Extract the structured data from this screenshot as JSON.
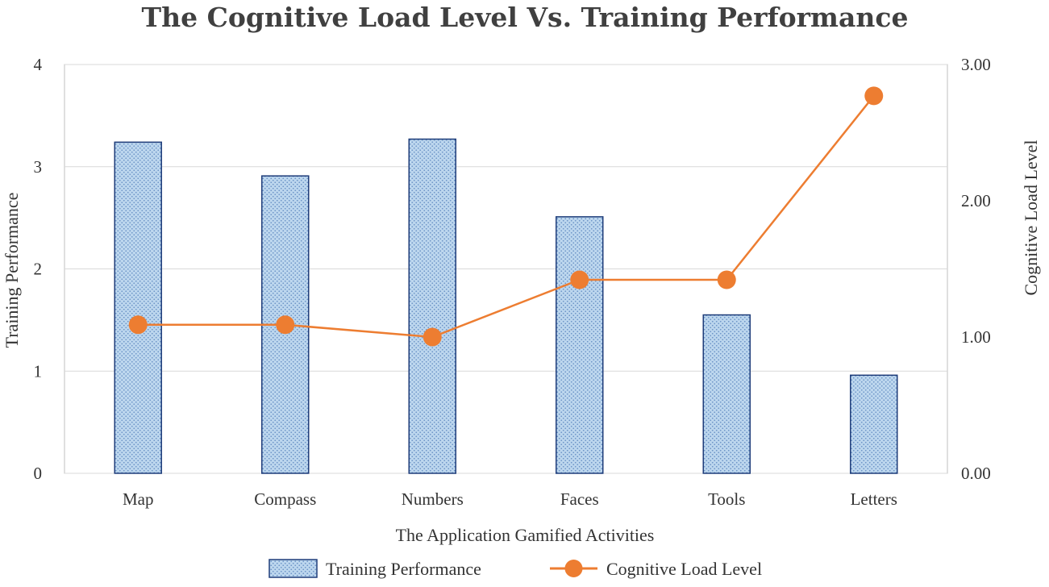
{
  "chart_data": {
    "type": "bar+line",
    "title": "The Cognitive Load Level Vs. Training Performance",
    "xlabel": "The Application Gamified Activities",
    "ylabel_left": "Training Performance",
    "ylabel_right": "Cognitive Load Level",
    "categories": [
      "Map",
      "Compass",
      "Numbers",
      "Faces",
      "Tools",
      "Letters"
    ],
    "ylim_left": [
      0,
      4
    ],
    "yticks_left": [
      "0",
      "1",
      "2",
      "3",
      "4"
    ],
    "ylim_right": [
      0,
      3
    ],
    "yticks_right": [
      "0.00",
      "1.00",
      "2.00",
      "3.00"
    ],
    "grid": true,
    "legend_position": "bottom",
    "series": [
      {
        "name": "Training Performance",
        "type": "bar",
        "axis": "left",
        "color": "#9dc3e6",
        "edge_color": "#1f3d7a",
        "values": [
          3.24,
          2.91,
          3.27,
          2.51,
          1.55,
          0.96
        ]
      },
      {
        "name": "Cognitive Load Level",
        "type": "line",
        "axis": "right",
        "color": "#ed7d31",
        "values": [
          1.09,
          1.09,
          1.0,
          1.42,
          1.42,
          2.77
        ]
      }
    ]
  }
}
